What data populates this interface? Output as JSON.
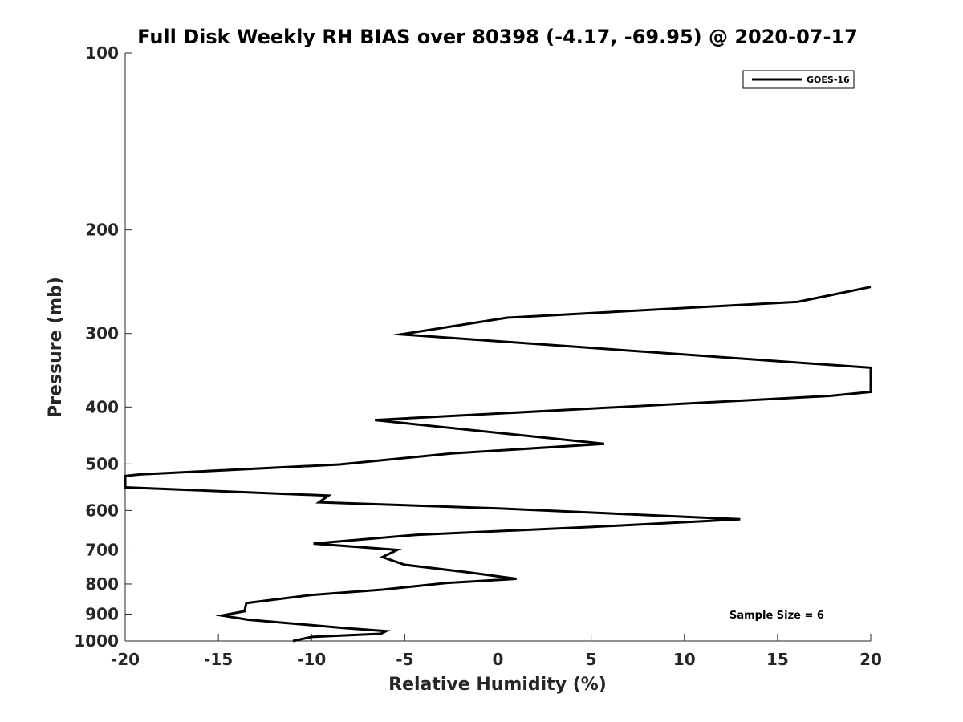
{
  "chart_data": {
    "type": "line",
    "title": "Full Disk Weekly RH BIAS over 80398 (-4.17, -69.95) @ 2020-07-17",
    "xlabel": "Relative Humidity (%)",
    "ylabel": "Pressure (mb)",
    "xlim": [
      -20,
      20
    ],
    "ylim": [
      100,
      1000
    ],
    "y_scale": "log",
    "y_reversed": true,
    "x_ticks": [
      -20,
      -15,
      -10,
      -5,
      0,
      5,
      10,
      15,
      20
    ],
    "x_tick_labels": [
      "-20",
      "-15",
      "-10",
      "-5",
      "0",
      "5",
      "10",
      "15",
      "20"
    ],
    "y_ticks": [
      100,
      200,
      300,
      400,
      500,
      600,
      700,
      800,
      900,
      1000
    ],
    "y_tick_labels": [
      "100",
      "200",
      "300",
      "400",
      "500",
      "600",
      "700",
      "800",
      "900",
      "1000"
    ],
    "grid": false,
    "legend_position": "top-right",
    "annotation": "Sample Size = 6",
    "series": [
      {
        "name": "GOES-16",
        "color": "#000000",
        "points": [
          {
            "x": 20.0,
            "y": 250
          },
          {
            "x": 16.1,
            "y": 265
          },
          {
            "x": 0.5,
            "y": 282
          },
          {
            "x": -5.2,
            "y": 301
          },
          {
            "x": 20.0,
            "y": 343
          },
          {
            "x": 20.0,
            "y": 377
          },
          {
            "x": 17.8,
            "y": 383
          },
          {
            "x": -6.6,
            "y": 421
          },
          {
            "x": 5.7,
            "y": 462
          },
          {
            "x": -2.5,
            "y": 480
          },
          {
            "x": -8.5,
            "y": 501
          },
          {
            "x": -19.2,
            "y": 521
          },
          {
            "x": -20.0,
            "y": 524
          },
          {
            "x": -20.0,
            "y": 548
          },
          {
            "x": -9.1,
            "y": 566
          },
          {
            "x": -9.6,
            "y": 581
          },
          {
            "x": 0.0,
            "y": 595
          },
          {
            "x": 13.0,
            "y": 621
          },
          {
            "x": 5.0,
            "y": 640
          },
          {
            "x": -4.4,
            "y": 660
          },
          {
            "x": -9.9,
            "y": 683
          },
          {
            "x": -5.4,
            "y": 700
          },
          {
            "x": -6.2,
            "y": 720
          },
          {
            "x": -5.0,
            "y": 742
          },
          {
            "x": -1.5,
            "y": 765
          },
          {
            "x": 1.0,
            "y": 784
          },
          {
            "x": -2.8,
            "y": 797
          },
          {
            "x": -6.2,
            "y": 818
          },
          {
            "x": -10.0,
            "y": 835
          },
          {
            "x": -13.5,
            "y": 862
          },
          {
            "x": -13.6,
            "y": 890
          },
          {
            "x": -14.8,
            "y": 905
          },
          {
            "x": -13.4,
            "y": 920
          },
          {
            "x": -8.3,
            "y": 950
          },
          {
            "x": -6.0,
            "y": 962
          },
          {
            "x": -6.3,
            "y": 972
          },
          {
            "x": -10.0,
            "y": 984
          },
          {
            "x": -11.0,
            "y": 1000
          }
        ]
      }
    ]
  }
}
